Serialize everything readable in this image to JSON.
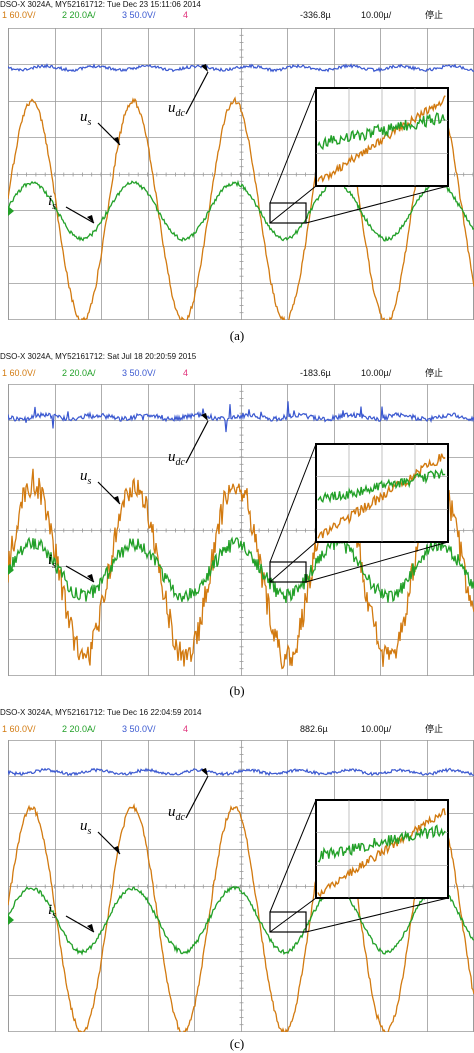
{
  "panels": [
    {
      "header": "DSO-X 3024A, MY52161712: Tue Dec 23 15:11:06 2014",
      "ch1": "1   60.0V/",
      "ch2": "2   20.0A/",
      "ch3": "3   50.0V/",
      "ch4": "4",
      "trig_pos": "-336.8µ",
      "timebase": "10.00µ/",
      "state": "停止",
      "caption": "(a)",
      "labels": {
        "udc": "u",
        "udc_sub": "dc",
        "us": "u",
        "us_sub": "s",
        "is": "i",
        "is_sub": "s"
      },
      "ground_marker": "2"
    },
    {
      "header": "DSO-X 3024A, MY52161712: Sat Jul 18 20:20:59 2015",
      "ch1": "1   60.0V/",
      "ch2": "2   20.0A/",
      "ch3": "3   50.0V/",
      "ch4": "4",
      "trig_pos": "-183.6µ",
      "timebase": "10.00µ/",
      "state": "停止",
      "caption": "(b)",
      "labels": {
        "udc": "u",
        "udc_sub": "dc",
        "us": "u",
        "us_sub": "s",
        "is": "i",
        "is_sub": "s"
      },
      "ground_marker": "2"
    },
    {
      "header": "DSO-X 3024A, MY52161712: Tue Dec 16 22:04:59 2014",
      "ch1": "1   60.0V/",
      "ch2": "2   20.0A/",
      "ch3": "3   50.0V/",
      "ch4": "4",
      "trig_pos": "882.6µ",
      "timebase": "10.00µ/",
      "state": "停止",
      "caption": "(c)",
      "labels": {
        "udc": "u",
        "udc_sub": "dc",
        "us": "u",
        "us_sub": "s",
        "is": "i",
        "is_sub": "s"
      },
      "ground_marker": "2"
    }
  ],
  "colors": {
    "ch1": "#d27a10",
    "ch2": "#22a028",
    "ch3": "#3a58d0",
    "ch4": "#e0307a",
    "grid": "#9a9a9a",
    "text": "#111111"
  },
  "chart_data": [
    {
      "type": "line",
      "grid": true,
      "cycles_on_screen": 4.6,
      "series": [
        {
          "name": "udc",
          "shape": "nearly flat with small 2nd-harmonic ripple",
          "noise": "low"
        },
        {
          "name": "us",
          "shape": "sinusoid",
          "noise": "low"
        },
        {
          "name": "is",
          "shape": "sinusoid in phase with us",
          "noise": "low"
        }
      ]
    },
    {
      "type": "line",
      "grid": true,
      "cycles_on_screen": 4.6,
      "series": [
        {
          "name": "udc",
          "shape": "nearly flat",
          "noise": "spiky"
        },
        {
          "name": "us",
          "shape": "sinusoid",
          "noise": "high"
        },
        {
          "name": "is",
          "shape": "sinusoid in phase with us",
          "noise": "medium"
        }
      ]
    },
    {
      "type": "line",
      "grid": true,
      "cycles_on_screen": 4.6,
      "series": [
        {
          "name": "udc",
          "shape": "nearly flat with small 2nd-harmonic ripple",
          "noise": "low"
        },
        {
          "name": "us",
          "shape": "sinusoid",
          "noise": "low"
        },
        {
          "name": "is",
          "shape": "sinusoid in phase with us",
          "noise": "low"
        }
      ]
    }
  ]
}
